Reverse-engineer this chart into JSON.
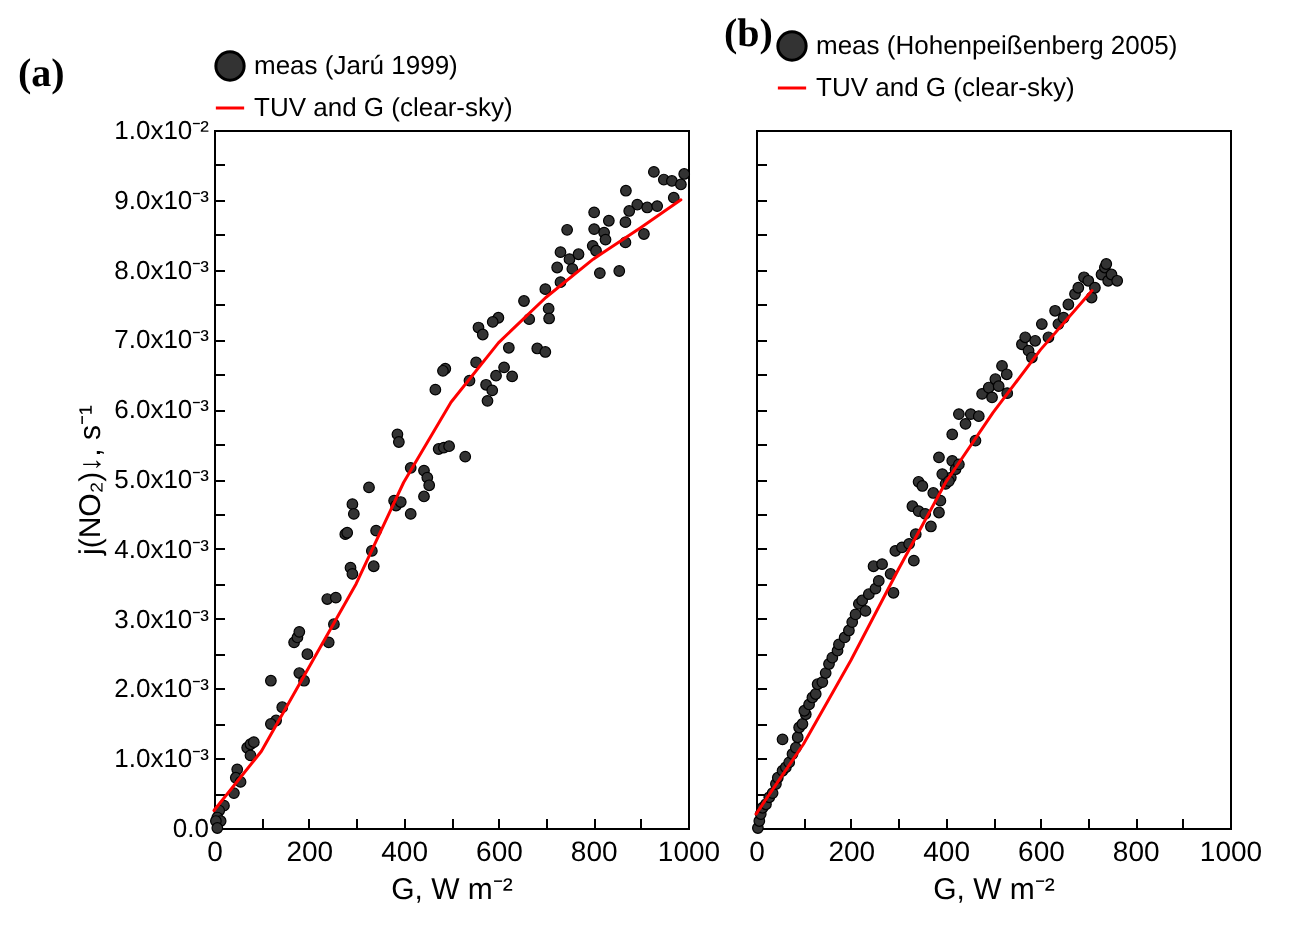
{
  "chart_data": [
    {
      "type": "scatter",
      "title": "(a)",
      "xlabel": "G,  W m⁻²",
      "ylabel": "j(NO₂)↓, s⁻¹",
      "legend": "top",
      "xlim": [
        0,
        1000
      ],
      "ylim": [
        0,
        0.01
      ],
      "xticks": [
        0,
        {
          "value": 100,
          "label": null
        },
        200,
        {
          "value": 300,
          "label": null
        },
        400,
        {
          "value": 500,
          "label": null
        },
        600,
        {
          "value": 700,
          "label": null
        },
        800,
        {
          "value": 900,
          "label": null
        },
        1000
      ],
      "yticks": [
        {
          "value": 0,
          "label": "0.0"
        },
        {
          "value": 0.0005,
          "label": null
        },
        {
          "value": 0.001,
          "label": "1.0x10⁻³"
        },
        {
          "value": 0.0015,
          "label": null
        },
        {
          "value": 0.002,
          "label": "2.0x10⁻³"
        },
        {
          "value": 0.0025,
          "label": null
        },
        {
          "value": 0.003,
          "label": "3.0x10⁻³"
        },
        {
          "value": 0.0035,
          "label": null
        },
        {
          "value": 0.004,
          "label": "4.0x10⁻³"
        },
        {
          "value": 0.0045,
          "label": null
        },
        {
          "value": 0.005,
          "label": "5.0x10⁻³"
        },
        {
          "value": 0.0055,
          "label": null
        },
        {
          "value": 0.006,
          "label": "6.0x10⁻³"
        },
        {
          "value": 0.0065,
          "label": null
        },
        {
          "value": 0.007,
          "label": "7.0x10⁻³"
        },
        {
          "value": 0.0075,
          "label": null
        },
        {
          "value": 0.008,
          "label": "8.0x10⁻³"
        },
        {
          "value": 0.0085,
          "label": null
        },
        {
          "value": 0.009,
          "label": "9.0x10⁻³"
        },
        {
          "value": 0.0095,
          "label": null
        },
        {
          "value": 0.01,
          "label": "1.0x10⁻²"
        }
      ],
      "series": [
        {
          "name": "meas (Jarú 1999)",
          "marker": "circle",
          "color": "#333333",
          "x": [
            928,
            949,
            966,
            992,
            985,
            970,
            869,
            893,
            876,
            914,
            935,
            833,
            868,
            907,
            802,
            802,
            823,
            826,
            799,
            806,
            745,
            731,
            750,
            769,
            724,
            756,
            814,
            855,
            731,
            699,
            868,
            654,
            706,
            707,
            665,
            600,
            588,
            558,
            567,
            622,
            682,
            699,
            553,
            488,
            483,
            539,
            612,
            595,
            629,
            574,
            587,
            577,
            467,
            387,
            390,
            474,
            485,
            496,
            530,
            415,
            443,
            450,
            454,
            443,
            415,
            380,
            384,
            394,
            292,
            295,
            327,
            277,
            281,
            342,
            333,
            337,
            288,
            292,
            239,
            257,
            253,
            242,
            169,
            176,
            180,
            197,
            180,
            190,
            120,
            144,
            131,
            120,
            70,
            77,
            84,
            77,
            49,
            46,
            56,
            42,
            21,
            11,
            7,
            14,
            4,
            7
          ],
          "values": [
            0.0094,
            0.00929,
            0.00927,
            0.00937,
            0.00922,
            0.00903,
            0.00913,
            0.00893,
            0.00884,
            0.00889,
            0.00891,
            0.0087,
            0.00868,
            0.00851,
            0.00882,
            0.00858,
            0.00853,
            0.00843,
            0.00834,
            0.00827,
            0.00857,
            0.00825,
            0.00815,
            0.00822,
            0.00803,
            0.00801,
            0.00795,
            0.00798,
            0.00782,
            0.00772,
            0.00839,
            0.00755,
            0.00744,
            0.0073,
            0.00729,
            0.00731,
            0.00725,
            0.00717,
            0.00707,
            0.00688,
            0.00687,
            0.00682,
            0.00667,
            0.00658,
            0.00655,
            0.00641,
            0.0066,
            0.00648,
            0.00647,
            0.00635,
            0.00627,
            0.00612,
            0.00628,
            0.00564,
            0.00553,
            0.00543,
            0.00545,
            0.00547,
            0.00532,
            0.00516,
            0.00512,
            0.00502,
            0.00491,
            0.00475,
            0.0045,
            0.00469,
            0.00462,
            0.00467,
            0.00464,
            0.0045,
            0.00488,
            0.00421,
            0.00423,
            0.00426,
            0.00397,
            0.00375,
            0.00373,
            0.00364,
            0.00328,
            0.0033,
            0.00292,
            0.00266,
            0.00266,
            0.00273,
            0.00281,
            0.00249,
            0.00222,
            0.00211,
            0.00211,
            0.00173,
            0.00154,
            0.00149,
            0.00115,
            0.0012,
            0.00123,
            0.00104,
            0.00084,
            0.00072,
            0.00066,
            0.0005,
            0.00032,
            0.00025,
            0.00015,
            0.0001,
            0.0001,
            0.0
          ]
        },
        {
          "name": "TUV and G (clear-sky)",
          "type": "line",
          "color": "#ff0000",
          "x": [
            0,
            100,
            200,
            300,
            400,
            500,
            600,
            700,
            800,
            900,
            985
          ],
          "values": [
            0.00025,
            0.0011,
            0.0023,
            0.0035,
            0.00495,
            0.0061,
            0.00695,
            0.0076,
            0.00815,
            0.0086,
            0.009
          ]
        }
      ]
    },
    {
      "type": "scatter",
      "title": "(b)",
      "xlabel": "G,  W m⁻²",
      "legend": "top",
      "tick_labels": "x",
      "xlim": [
        0,
        1000
      ],
      "ylim": [
        0,
        0.01
      ],
      "xticks": [
        0,
        {
          "value": 100,
          "label": null
        },
        200,
        {
          "value": 300,
          "label": null
        },
        400,
        {
          "value": 500,
          "label": null
        },
        600,
        {
          "value": 700,
          "label": null
        },
        800,
        {
          "value": 900,
          "label": null
        },
        1000
      ],
      "yticks": [
        {
          "value": 0,
          "label": null
        },
        {
          "value": 0.0005,
          "label": null
        },
        {
          "value": 0.001,
          "label": null
        },
        {
          "value": 0.0015,
          "label": null
        },
        {
          "value": 0.002,
          "label": null
        },
        {
          "value": 0.0025,
          "label": null
        },
        {
          "value": 0.003,
          "label": null
        },
        {
          "value": 0.0035,
          "label": null
        },
        {
          "value": 0.004,
          "label": null
        },
        {
          "value": 0.0045,
          "label": null
        },
        {
          "value": 0.005,
          "label": null
        },
        {
          "value": 0.0055,
          "label": null
        },
        {
          "value": 0.006,
          "label": null
        },
        {
          "value": 0.0065,
          "label": null
        },
        {
          "value": 0.007,
          "label": null
        },
        {
          "value": 0.0075,
          "label": null
        },
        {
          "value": 0.008,
          "label": null
        },
        {
          "value": 0.0085,
          "label": null
        },
        {
          "value": 0.009,
          "label": null
        },
        {
          "value": 0.0095,
          "label": null
        },
        {
          "value": 0.01,
          "label": null
        }
      ],
      "series": [
        {
          "name": "meas (Hohenpeißenberg 2005)",
          "marker": "circle",
          "color": "#333333",
          "x": [
            4,
            7,
            10,
            14,
            21,
            28,
            35,
            42,
            46,
            56,
            63,
            56,
            70,
            77,
            84,
            88,
            91,
            98,
            105,
            102,
            112,
            119,
            126,
            130,
            140,
            147,
            154,
            161,
            172,
            175,
            187,
            196,
            203,
            210,
            217,
            224,
            231,
            238,
            252,
            259,
            248,
            266,
            284,
            290,
            294,
            308,
            323,
            333,
            337,
            330,
            343,
            357,
            369,
            386,
            389,
            343,
            374,
            400,
            411,
            351,
            386,
            393,
            407,
            414,
            421,
            428,
            414,
            428,
            442,
            453,
            463,
            470,
            477,
            491,
            498,
            505,
            512,
            519,
            529,
            530,
            561,
            568,
            575,
            582,
            589,
            603,
            617,
            631,
            638,
            649,
            659,
            673,
            680,
            692,
            701,
            708,
            715,
            729,
            736,
            743,
            750,
            762,
            739
          ],
          "values": [
            0.0,
            0.0001,
            0.0002,
            0.00029,
            0.00034,
            0.00044,
            0.0005,
            0.00063,
            0.00072,
            0.00082,
            0.00087,
            0.00127,
            0.00094,
            0.00106,
            0.00115,
            0.0013,
            0.00144,
            0.00149,
            0.00163,
            0.00168,
            0.00177,
            0.00187,
            0.00192,
            0.00206,
            0.00209,
            0.00222,
            0.00235,
            0.00244,
            0.00254,
            0.00263,
            0.00273,
            0.00283,
            0.00295,
            0.00306,
            0.00321,
            0.00326,
            0.00311,
            0.00335,
            0.00343,
            0.00354,
            0.00375,
            0.00378,
            0.00364,
            0.00337,
            0.00397,
            0.00402,
            0.00407,
            0.00383,
            0.00421,
            0.00461,
            0.00454,
            0.0045,
            0.00432,
            0.00452,
            0.00469,
            0.00496,
            0.0048,
            0.00493,
            0.00502,
            0.0049,
            0.00531,
            0.00507,
            0.00497,
            0.00526,
            0.00514,
            0.00521,
            0.00564,
            0.00593,
            0.00579,
            0.00593,
            0.00555,
            0.0059,
            0.00622,
            0.00631,
            0.00617,
            0.00643,
            0.00633,
            0.00662,
            0.0065,
            0.00623,
            0.00693,
            0.00703,
            0.00684,
            0.00674,
            0.00698,
            0.00722,
            0.00703,
            0.00741,
            0.00722,
            0.00731,
            0.0075,
            0.00765,
            0.00774,
            0.00789,
            0.00784,
            0.0076,
            0.00774,
            0.00793,
            0.00803,
            0.00784,
            0.00793,
            0.00784,
            0.00808
          ]
        },
        {
          "name": "TUV and G (clear-sky)",
          "type": "line",
          "color": "#ff0000",
          "x": [
            0,
            100,
            200,
            300,
            400,
            500,
            600,
            709
          ],
          "values": [
            0.0002,
            0.0012,
            0.0024,
            0.0037,
            0.00495,
            0.00595,
            0.00685,
            0.0077
          ]
        }
      ]
    }
  ]
}
